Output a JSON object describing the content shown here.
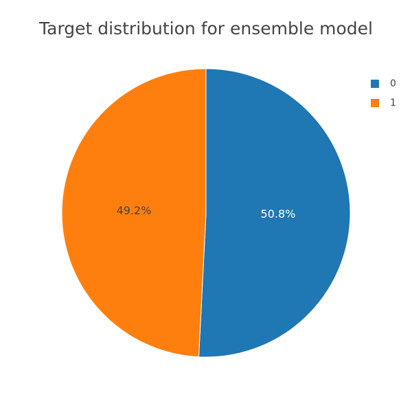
{
  "chart_data": {
    "type": "pie",
    "title": "Target distribution for ensemble model",
    "labels": [
      "0",
      "1"
    ],
    "values": [
      50.8,
      49.2
    ],
    "percent_labels": [
      "50.8%",
      "49.2%"
    ],
    "colors": [
      "#1f77b4",
      "#ff7f0e"
    ],
    "label_text_colors": [
      "#ffffff",
      "#444444"
    ],
    "legend_position": "top-right",
    "direction": "clockwise",
    "start": "top"
  }
}
